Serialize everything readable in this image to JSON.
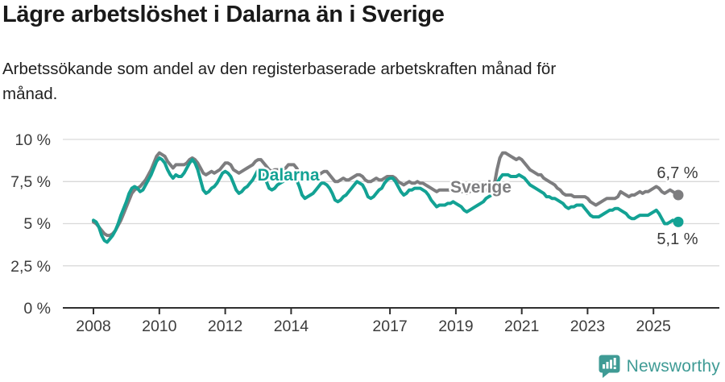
{
  "header": {
    "title": "Lägre arbetslöshet i Dalarna än i Sverige",
    "subtitle": "Arbetssökande som andel av den registerbaserade arbetskraften månad för månad.",
    "subtitle_lines": [
      "Arbetssökande som andel av den registerbaserade arbetskraften månad för",
      "månad."
    ]
  },
  "chart_data": {
    "type": "line",
    "title": "Lägre arbetslöshet i Dalarna än i Sverige",
    "xlabel": "",
    "ylabel": "",
    "ylim": [
      0,
      10
    ],
    "grid": "horizontal",
    "x_unit": "month",
    "x_range": [
      "2008-01",
      "2025-10"
    ],
    "x_tick_labels": [
      "2008",
      "2010",
      "2012",
      "2014",
      "2017",
      "2019",
      "2021",
      "2023",
      "2025"
    ],
    "y_tick_labels_top_down": [
      "10 %",
      "7,5 %",
      "5 %",
      "2,5 %",
      "0 %"
    ],
    "legend_position": "inline-labels-on-lines",
    "series": [
      {
        "name": "Dalarna",
        "color": "#13a294",
        "end_label": "5,1 %",
        "end_value": 5.1,
        "values": [
          5.2,
          5.1,
          4.8,
          4.3,
          4.0,
          3.9,
          4.1,
          4.3,
          4.6,
          5.0,
          5.5,
          5.9,
          6.3,
          6.8,
          7.1,
          7.2,
          7.1,
          6.9,
          7.0,
          7.3,
          7.6,
          7.9,
          8.3,
          8.7,
          8.9,
          8.8,
          8.6,
          8.2,
          7.9,
          7.7,
          7.9,
          7.8,
          7.8,
          8.0,
          8.3,
          8.6,
          8.8,
          8.6,
          8.2,
          7.6,
          7.0,
          6.8,
          6.9,
          7.1,
          7.2,
          7.4,
          7.7,
          8.0,
          8.1,
          8.0,
          7.8,
          7.4,
          7.0,
          6.8,
          6.9,
          7.1,
          7.2,
          7.4,
          7.6,
          7.9,
          8.2,
          8.1,
          7.9,
          7.5,
          7.1,
          7.0,
          7.1,
          7.3,
          7.4,
          7.5,
          7.7,
          7.9,
          8.0,
          7.9,
          7.6,
          7.2,
          6.7,
          6.5,
          6.6,
          6.7,
          6.8,
          7.0,
          7.2,
          7.4,
          7.4,
          7.3,
          7.1,
          6.8,
          6.4,
          6.3,
          6.4,
          6.6,
          6.7,
          6.9,
          7.1,
          7.3,
          7.5,
          7.4,
          7.3,
          7.0,
          6.6,
          6.5,
          6.6,
          6.8,
          7.0,
          7.1,
          7.4,
          7.6,
          7.7,
          7.7,
          7.5,
          7.2,
          6.9,
          6.7,
          6.8,
          7.0,
          7.0,
          7.1,
          7.1,
          7.1,
          7.0,
          6.9,
          6.7,
          6.4,
          6.2,
          6.0,
          6.1,
          6.1,
          6.1,
          6.2,
          6.2,
          6.3,
          6.2,
          6.1,
          6.0,
          5.8,
          5.7,
          5.8,
          5.9,
          6.0,
          6.1,
          6.2,
          6.3,
          6.5,
          6.6,
          6.7,
          6.9,
          7.4,
          7.7,
          7.9,
          7.9,
          7.9,
          7.8,
          7.8,
          7.8,
          7.9,
          7.8,
          7.7,
          7.5,
          7.3,
          7.2,
          7.1,
          7.0,
          6.9,
          6.8,
          6.6,
          6.6,
          6.5,
          6.5,
          6.4,
          6.3,
          6.2,
          6.0,
          5.9,
          6.0,
          6.0,
          6.1,
          6.1,
          6.1,
          5.9,
          5.7,
          5.5,
          5.4,
          5.4,
          5.4,
          5.5,
          5.6,
          5.7,
          5.8,
          5.8,
          5.9,
          5.9,
          5.8,
          5.7,
          5.6,
          5.4,
          5.3,
          5.3,
          5.4,
          5.5,
          5.5,
          5.5,
          5.5,
          5.6,
          5.7,
          5.8,
          5.6,
          5.3,
          5.0,
          5.0,
          5.1,
          5.2,
          5.1,
          5.1
        ]
      },
      {
        "name": "Sverige",
        "color": "#7d7d7f",
        "end_label": "6,7 %",
        "end_value": 6.7,
        "values": [
          5.1,
          5.0,
          4.8,
          4.6,
          4.4,
          4.3,
          4.3,
          4.4,
          4.6,
          4.9,
          5.2,
          5.6,
          6.0,
          6.4,
          6.8,
          7.0,
          7.1,
          7.2,
          7.4,
          7.6,
          7.9,
          8.2,
          8.6,
          9.0,
          9.2,
          9.1,
          9.0,
          8.7,
          8.5,
          8.3,
          8.5,
          8.5,
          8.5,
          8.5,
          8.6,
          8.8,
          8.9,
          8.8,
          8.6,
          8.3,
          8.0,
          7.9,
          8.0,
          8.1,
          8.0,
          8.1,
          8.2,
          8.4,
          8.6,
          8.6,
          8.5,
          8.2,
          8.1,
          8.0,
          8.1,
          8.2,
          8.3,
          8.4,
          8.5,
          8.7,
          8.8,
          8.8,
          8.6,
          8.4,
          8.2,
          8.1,
          8.2,
          8.2,
          8.2,
          8.2,
          8.3,
          8.5,
          8.5,
          8.5,
          8.3,
          8.0,
          7.8,
          7.7,
          7.8,
          7.9,
          7.8,
          7.8,
          7.9,
          8.0,
          8.1,
          8.1,
          7.9,
          7.7,
          7.5,
          7.5,
          7.6,
          7.7,
          7.6,
          7.6,
          7.7,
          7.8,
          7.9,
          7.9,
          7.8,
          7.6,
          7.5,
          7.5,
          7.6,
          7.7,
          7.6,
          7.6,
          7.7,
          7.8,
          7.8,
          7.8,
          7.7,
          7.5,
          7.4,
          7.3,
          7.4,
          7.5,
          7.4,
          7.4,
          7.5,
          7.4,
          7.4,
          7.3,
          7.2,
          7.1,
          7.0,
          6.9,
          7.0,
          7.0,
          7.0,
          7.0,
          7.0,
          7.1,
          7.0,
          7.0,
          6.9,
          6.9,
          6.8,
          6.9,
          7.0,
          7.0,
          7.0,
          7.0,
          7.0,
          7.0,
          7.0,
          7.0,
          7.3,
          8.2,
          8.9,
          9.2,
          9.2,
          9.1,
          9.0,
          8.9,
          8.8,
          8.9,
          8.8,
          8.6,
          8.4,
          8.2,
          8.1,
          8.0,
          7.9,
          7.9,
          7.7,
          7.6,
          7.5,
          7.4,
          7.3,
          7.1,
          7.0,
          6.8,
          6.7,
          6.7,
          6.7,
          6.6,
          6.6,
          6.6,
          6.6,
          6.6,
          6.5,
          6.3,
          6.2,
          6.1,
          6.2,
          6.3,
          6.4,
          6.5,
          6.5,
          6.5,
          6.5,
          6.6,
          6.9,
          6.8,
          6.7,
          6.6,
          6.7,
          6.7,
          6.8,
          6.9,
          6.8,
          6.9,
          6.9,
          7.0,
          7.1,
          7.2,
          7.1,
          6.9,
          6.8,
          6.9,
          7.0,
          6.9,
          6.8,
          6.7
        ]
      }
    ]
  },
  "footer": {
    "brand": "Newsworthy",
    "brand_color": "#3f9b95",
    "logo_icon": "newsworthy-speech-bubble-bar-chart-icon"
  }
}
